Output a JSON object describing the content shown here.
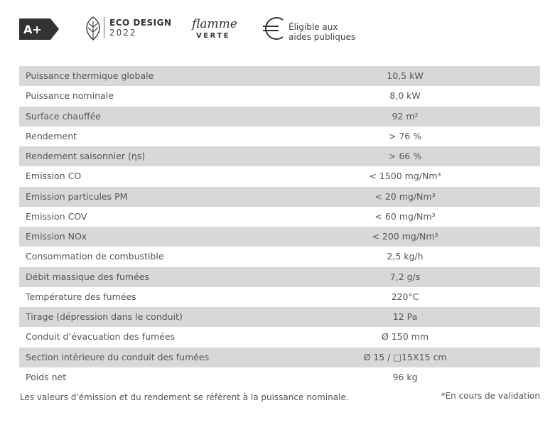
{
  "header": {
    "energy_class": "A+",
    "eco_design": {
      "title": "ECO DESIGN",
      "year": "2022"
    },
    "flamme_verte": {
      "script": "flamme",
      "word": "VERTE"
    },
    "aides": {
      "line1": "Éligible aux",
      "line2": "aides publiques"
    }
  },
  "table": {
    "rows": [
      [
        "Puissance thermique globale",
        "10,5 kW"
      ],
      [
        "Puissance nominale",
        "8,0 kW"
      ],
      [
        "Surface chauffée",
        "92 m²"
      ],
      [
        "Rendement",
        "> 76 %"
      ],
      [
        "Rendement saisonnier (ηs)",
        "> 66 %"
      ],
      [
        "Emission CO",
        "< 1500 mg/Nm³"
      ],
      [
        "Emission particules PM",
        "< 20 mg/Nm³"
      ],
      [
        "Emission COV",
        "< 60 mg/Nm³"
      ],
      [
        "Emission NOx",
        "< 200 mg/Nm³"
      ],
      [
        "Consommation de combustible",
        "2,5 kg/h"
      ],
      [
        "Débit massique des fumées",
        "7,2 g/s"
      ],
      [
        "Température des fumées",
        "220°C"
      ],
      [
        "Tirage (dépression dans le conduit)",
        "12 Pa"
      ],
      [
        "Conduit d’évacuation des fumées",
        "Ø 150 mm"
      ],
      [
        "Section intèrieure du conduit des fumées",
        "Ø 15 / □15X15 cm"
      ],
      [
        "Poids net",
        "96 kg"
      ]
    ]
  },
  "footer": {
    "note": "Les valeurs d'émission et du rendement se réfèrent à la puissance nominale.",
    "validation": "*En cours de validation"
  }
}
